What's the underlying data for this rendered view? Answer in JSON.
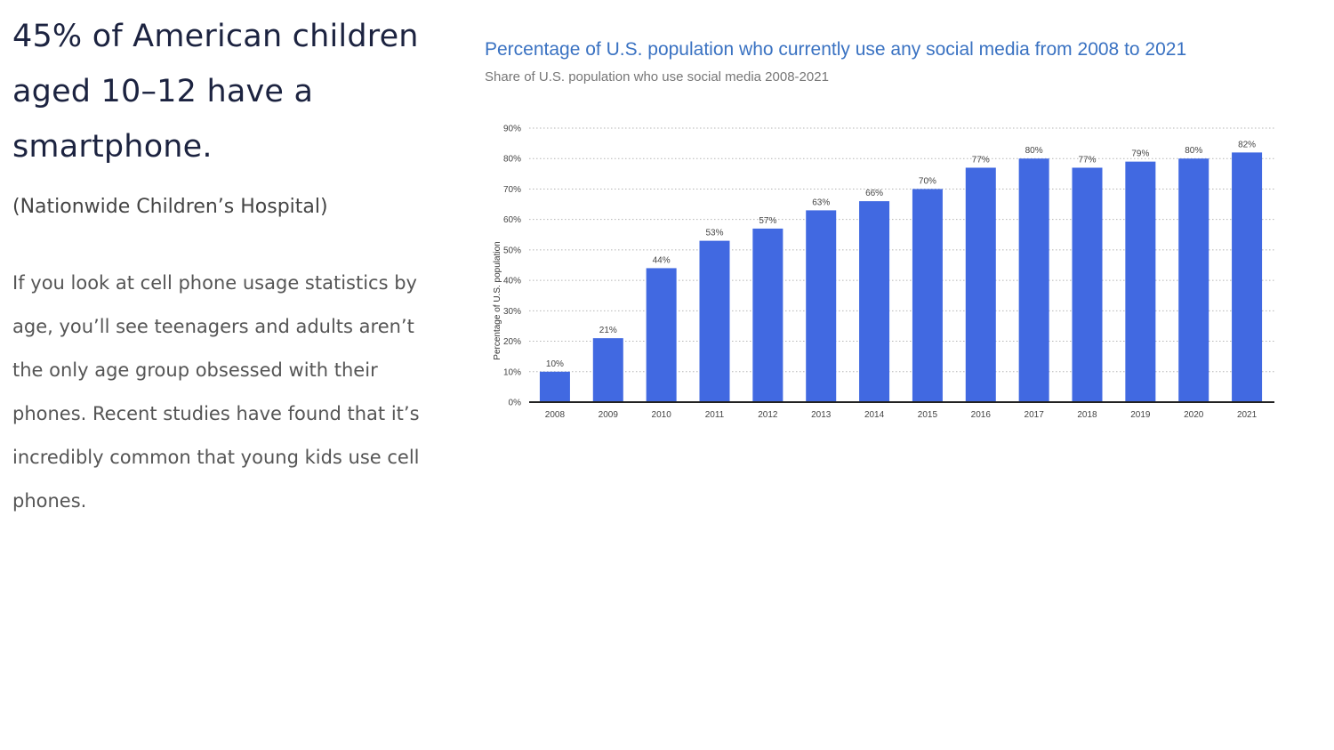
{
  "text": {
    "headline": "45% of American children aged 10–12 have a smartphone.",
    "source": "(Nationwide Children’s Hospital)",
    "body": "If you look at cell phone usage statistics by age, you’ll see teenagers and adults aren’t the only age group obsessed with their phones. Recent studies have found that it’s incredibly common that young kids use cell phones."
  },
  "colors": {
    "bar": "#4169e1",
    "title": "#3a72c2",
    "grid": "#b5b5b5",
    "axis": "#222222"
  },
  "chart_data": {
    "type": "bar",
    "title": "Percentage of U.S. population who currently use any social media from 2008 to 2021",
    "subtitle": "Share of U.S. population who use social media 2008-2021",
    "xlabel": "",
    "ylabel": "Percentage of U.S. population",
    "categories": [
      "2008",
      "2009",
      "2010",
      "2011",
      "2012",
      "2013",
      "2014",
      "2015",
      "2016",
      "2017",
      "2018",
      "2019",
      "2020",
      "2021"
    ],
    "values": [
      10,
      21,
      44,
      53,
      57,
      63,
      66,
      70,
      77,
      80,
      77,
      79,
      80,
      82
    ],
    "value_labels": [
      "10%",
      "21%",
      "44%",
      "53%",
      "57%",
      "63%",
      "66%",
      "70%",
      "77%",
      "80%",
      "77%",
      "79%",
      "80%",
      "82%"
    ],
    "ylim": [
      0,
      90
    ],
    "yticks": [
      0,
      10,
      20,
      30,
      40,
      50,
      60,
      70,
      80,
      90
    ],
    "ytick_labels": [
      "0%",
      "10%",
      "20%",
      "30%",
      "40%",
      "50%",
      "60%",
      "70%",
      "80%",
      "90%"
    ],
    "grid": true,
    "legend": "none"
  }
}
